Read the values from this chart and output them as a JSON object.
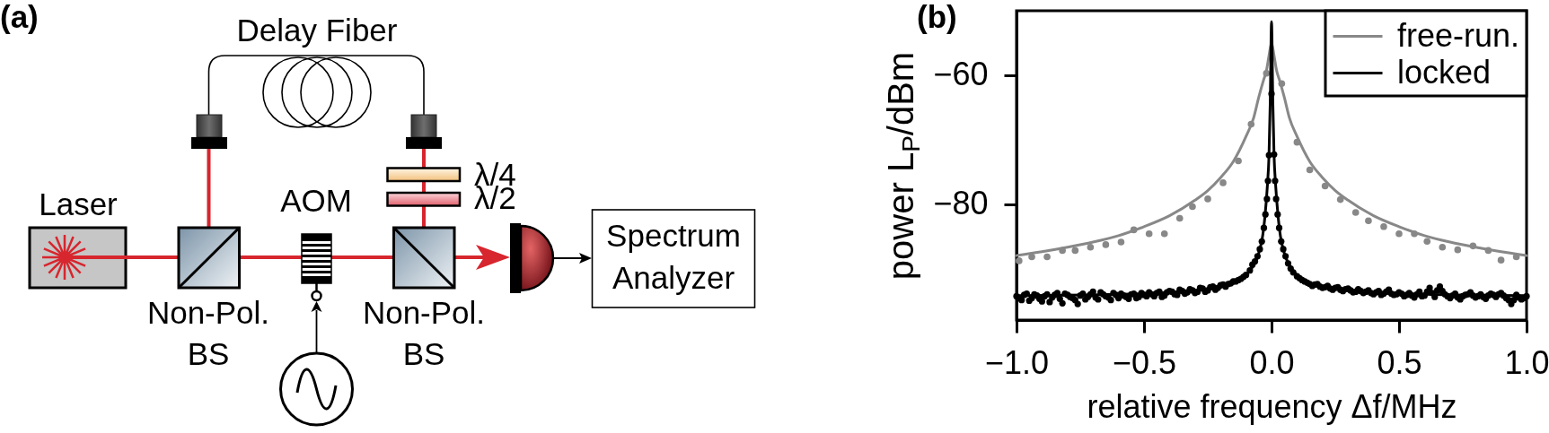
{
  "chart_data": [
    {
      "type": "other",
      "title": "(a)",
      "annotations": [
        "Delay Fiber",
        "Laser",
        "AOM",
        "Non-Pol. BS",
        "Non-Pol. BS",
        "λ/4",
        "λ/2",
        "Spectrum Analyzer"
      ]
    },
    {
      "type": "line",
      "title": "(b)",
      "xlabel": "relative frequency Δf/MHz",
      "ylabel": "power L$_{P}$/dBm",
      "xlim": [
        -1,
        1
      ],
      "ylim": [
        -98,
        -50
      ],
      "xticks": [
        {
          "value": -1,
          "label": "−1.0"
        },
        {
          "value": -0.5,
          "label": "−0.5"
        },
        {
          "value": 0,
          "label": "0.0"
        },
        0.5,
        {
          "value": 1,
          "label": "1.0"
        }
      ],
      "yticks": [
        {
          "value": -80,
          "label": "−80"
        },
        {
          "value": -60,
          "label": "−60"
        }
      ],
      "legend": "top right",
      "series": [
        {
          "name": "free-run.",
          "type": "line",
          "color": "#888888",
          "x": [
            -1,
            -0.9,
            -0.8,
            -0.7,
            -0.6,
            -0.5,
            -0.4,
            -0.3,
            -0.25,
            -0.2,
            -0.15,
            -0.1,
            -0.07,
            -0.05,
            -0.03,
            -0.02,
            -0.01,
            0,
            0.01,
            0.02,
            0.03,
            0.05,
            0.07,
            0.1,
            0.15,
            0.2,
            0.25,
            0.3,
            0.4,
            0.5,
            0.6,
            0.7,
            0.8,
            0.9,
            1
          ],
          "values": [
            -88.0,
            -87.4,
            -86.7,
            -85.9,
            -84.9,
            -83.5,
            -81.8,
            -79.4,
            -77.9,
            -75.9,
            -73.4,
            -69.5,
            -66.6,
            -63.4,
            -60.6,
            -59.3,
            -57.0,
            -55.0,
            -57.0,
            -59.3,
            -60.6,
            -63.4,
            -66.6,
            -69.5,
            -73.4,
            -75.9,
            -77.9,
            -79.4,
            -81.8,
            -83.5,
            -84.9,
            -85.9,
            -86.7,
            -87.4,
            -88.0
          ]
        },
        {
          "type": "scatter",
          "color": "#888888",
          "marker": "circle",
          "x": [
            -0.99,
            -0.94,
            -0.88,
            -0.82,
            -0.77,
            -0.71,
            -0.65,
            -0.59,
            -0.54,
            -0.48,
            -0.42,
            -0.36,
            -0.31,
            -0.25,
            -0.19,
            -0.13,
            -0.08,
            -0.02,
            0.04,
            0.1,
            0.15,
            0.21,
            0.27,
            0.33,
            0.38,
            0.44,
            0.5,
            0.56,
            0.61,
            0.67,
            0.73,
            0.79,
            0.85,
            0.9,
            0.96
          ],
          "values": [
            -88.8,
            -88.2,
            -88.2,
            -87.2,
            -87.2,
            -86.7,
            -86.3,
            -85.9,
            -84.0,
            -84.6,
            -84.6,
            -82.2,
            -80.4,
            -79.2,
            -76.7,
            -73.3,
            -67.6,
            -59.7,
            -61.3,
            -70.4,
            -74.7,
            -77.2,
            -79.3,
            -81.3,
            -82.6,
            -83.5,
            -84.6,
            -84.6,
            -85.8,
            -86.7,
            -87.1,
            -86.5,
            -87.2,
            -88.7,
            -88.2
          ]
        },
        {
          "type": "scatter",
          "color": "#000000",
          "marker": "circle",
          "x": [
            -1.0,
            -0.99,
            -0.98,
            -0.97,
            -0.96,
            -0.95,
            -0.94,
            -0.93,
            -0.92,
            -0.91,
            -0.9,
            -0.89,
            -0.88,
            -0.87,
            -0.86,
            -0.85,
            -0.84,
            -0.83,
            -0.82,
            -0.81,
            -0.8,
            -0.79,
            -0.78,
            -0.77,
            -0.76,
            -0.75,
            -0.74,
            -0.73,
            -0.72,
            -0.71,
            -0.7,
            -0.69,
            -0.68,
            -0.67,
            -0.66,
            -0.65,
            -0.64,
            -0.63,
            -0.62,
            -0.61,
            -0.6,
            -0.59,
            -0.58,
            -0.57,
            -0.56,
            -0.55,
            -0.54,
            -0.53,
            -0.52,
            -0.51,
            -0.5,
            -0.49,
            -0.48,
            -0.47,
            -0.46,
            -0.45,
            -0.44,
            -0.43,
            -0.42,
            -0.41,
            -0.4,
            -0.39,
            -0.38,
            -0.37,
            -0.36,
            -0.35,
            -0.34,
            -0.33,
            -0.32,
            -0.31,
            -0.3,
            -0.29,
            -0.28,
            -0.27,
            -0.26,
            -0.25,
            -0.24,
            -0.23,
            -0.22,
            -0.21,
            -0.2,
            -0.19,
            -0.18,
            -0.17,
            -0.16,
            -0.15,
            -0.14,
            -0.13,
            -0.12,
            -0.11,
            -0.1,
            -0.085,
            -0.075,
            -0.065,
            -0.055,
            -0.046,
            -0.038,
            -0.03,
            -0.024,
            -0.018,
            -0.014,
            -0.01,
            0,
            0.01,
            0.014,
            0.018,
            0.024,
            0.03,
            0.038,
            0.046,
            0.055,
            0.065,
            0.075,
            0.085,
            0.1,
            0.11,
            0.12,
            0.13,
            0.14,
            0.15,
            0.16,
            0.17,
            0.18,
            0.19,
            0.2,
            0.21,
            0.22,
            0.23,
            0.24,
            0.25,
            0.26,
            0.27,
            0.28,
            0.29,
            0.3,
            0.31,
            0.32,
            0.33,
            0.34,
            0.35,
            0.36,
            0.37,
            0.38,
            0.39,
            0.4,
            0.41,
            0.42,
            0.43,
            0.44,
            0.45,
            0.46,
            0.47,
            0.48,
            0.49,
            0.5,
            0.51,
            0.52,
            0.53,
            0.54,
            0.55,
            0.56,
            0.57,
            0.58,
            0.59,
            0.6,
            0.61,
            0.62,
            0.63,
            0.64,
            0.65,
            0.66,
            0.67,
            0.68,
            0.69,
            0.7,
            0.71,
            0.72,
            0.73,
            0.74,
            0.75,
            0.76,
            0.77,
            0.78,
            0.79,
            0.8,
            0.81,
            0.82,
            0.83,
            0.84,
            0.85,
            0.86,
            0.87,
            0.88,
            0.89,
            0.9,
            0.91,
            0.92,
            0.93,
            0.94,
            0.95,
            0.96,
            0.97,
            0.98,
            0.99,
            1.0
          ],
          "values": [
            -94.3,
            -94.6,
            -94.9,
            -94.1,
            -93.9,
            -95.0,
            -94.6,
            -94.0,
            -94.2,
            -94.7,
            -95.1,
            -94.3,
            -94.0,
            -95.2,
            -94.5,
            -94.1,
            -93.8,
            -94.7,
            -95.4,
            -93.9,
            -94.1,
            -94.4,
            -94.6,
            -94.9,
            -95.5,
            -94.2,
            -93.9,
            -94.8,
            -94.4,
            -94.0,
            -93.6,
            -94.5,
            -94.8,
            -93.7,
            -94.0,
            -94.3,
            -94.5,
            -94.9,
            -93.8,
            -94.1,
            -94.6,
            -93.9,
            -94.2,
            -94.4,
            -94.7,
            -94.0,
            -93.9,
            -94.6,
            -94.4,
            -93.8,
            -94.1,
            -94.3,
            -93.7,
            -94.0,
            -94.3,
            -93.8,
            -93.6,
            -94.4,
            -94.2,
            -93.7,
            -93.5,
            -93.6,
            -94.0,
            -94.1,
            -93.3,
            -93.5,
            -93.9,
            -93.7,
            -93.2,
            -93.4,
            -93.8,
            -93.6,
            -93.0,
            -93.1,
            -93.6,
            -93.4,
            -92.9,
            -92.8,
            -93.3,
            -93.0,
            -92.6,
            -92.5,
            -92.8,
            -92.4,
            -92.3,
            -92.0,
            -92.0,
            -91.8,
            -91.6,
            -91.3,
            -91.0,
            -90.3,
            -89.4,
            -88.9,
            -88.1,
            -87.0,
            -85.8,
            -83.7,
            -81.6,
            -79.2,
            -76.4,
            -72.4,
            -62.9,
            -72.3,
            -76.4,
            -79.2,
            -81.6,
            -83.7,
            -85.8,
            -87.0,
            -88.1,
            -89.2,
            -90.0,
            -90.6,
            -91.2,
            -91.5,
            -91.8,
            -92.0,
            -92.2,
            -92.4,
            -92.7,
            -92.5,
            -92.4,
            -92.8,
            -93.0,
            -92.9,
            -92.7,
            -93.1,
            -93.3,
            -93.0,
            -92.9,
            -93.3,
            -93.5,
            -93.2,
            -93.1,
            -93.4,
            -93.7,
            -93.6,
            -93.2,
            -93.5,
            -93.8,
            -93.6,
            -93.4,
            -93.8,
            -94.0,
            -93.7,
            -93.5,
            -94.1,
            -93.9,
            -93.6,
            -93.3,
            -93.9,
            -94.1,
            -94.0,
            -93.7,
            -93.9,
            -94.3,
            -94.1,
            -93.8,
            -94.2,
            -94.5,
            -94.0,
            -93.6,
            -94.3,
            -94.2,
            -93.6,
            -93.0,
            -93.8,
            -94.4,
            -93.4,
            -92.8,
            -93.5,
            -94.0,
            -94.3,
            -94.6,
            -94.2,
            -93.9,
            -94.5,
            -94.8,
            -94.3,
            -94.1,
            -94.0,
            -93.7,
            -94.2,
            -94.5,
            -94.3,
            -94.0,
            -94.4,
            -94.7,
            -94.2,
            -93.9,
            -94.1,
            -94.4,
            -94.0,
            -93.8,
            -94.2,
            -94.6,
            -94.9,
            -95.5,
            -94.9,
            -94.1,
            -94.5,
            -94.8,
            -94.6,
            -94.3
          ]
        },
        {
          "name": "locked",
          "type": "line",
          "color": "#000000",
          "x": [
            -1,
            -0.6,
            -0.4,
            -0.3,
            -0.2,
            -0.15,
            -0.1,
            -0.07,
            -0.05,
            -0.035,
            -0.026,
            -0.016,
            -0.01,
            -0.005,
            0,
            0.005,
            0.01,
            0.016,
            0.026,
            0.035,
            0.05,
            0.07,
            0.1,
            0.15,
            0.2,
            0.3,
            0.4,
            0.6,
            1
          ],
          "values": [
            -94.2,
            -94.0,
            -93.7,
            -93.4,
            -92.9,
            -92.3,
            -91.0,
            -89.5,
            -87.6,
            -85.0,
            -82.0,
            -77.0,
            -72.5,
            -64.0,
            -51.7,
            -64.0,
            -72.5,
            -77.0,
            -82.0,
            -85.0,
            -87.6,
            -89.5,
            -91.0,
            -92.3,
            -92.9,
            -93.4,
            -93.7,
            -94.0,
            -94.2
          ]
        }
      ]
    }
  ]
}
